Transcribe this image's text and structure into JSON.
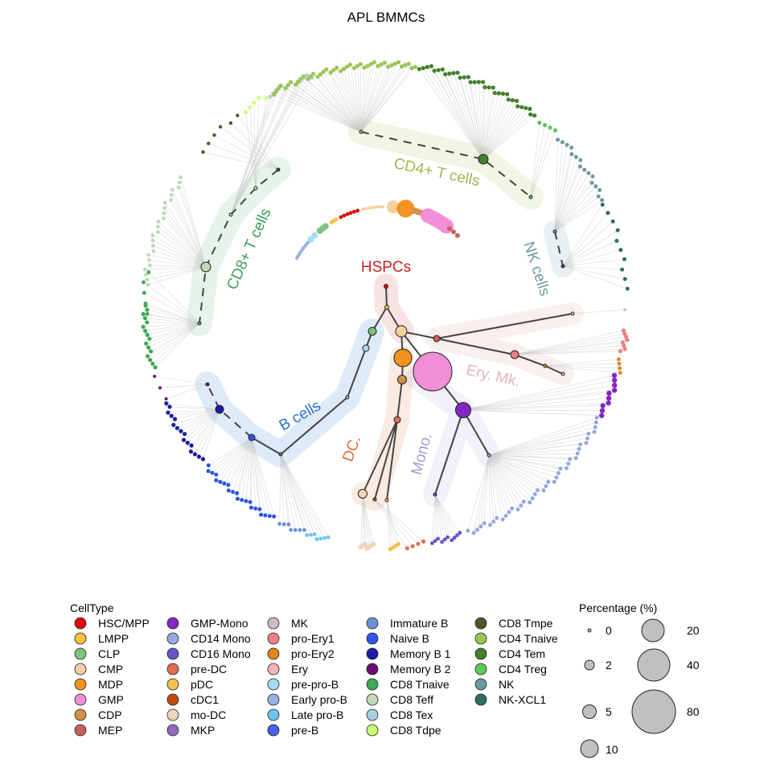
{
  "title": "APL BMMCs",
  "group_labels": [
    {
      "text": "HSPCs",
      "color": "#cc1f1f"
    },
    {
      "text": "CD4+ T cells",
      "color": "#9cba4d"
    },
    {
      "text": "CD8+ T cells",
      "color": "#3ea05a"
    },
    {
      "text": "NK cells",
      "color": "#6b9aa0"
    },
    {
      "text": "B cells",
      "color": "#2a6fd0"
    },
    {
      "text": "DC.",
      "color": "#d9703a"
    },
    {
      "text": "Mono.",
      "color": "#a99bd3"
    },
    {
      "text": "Ery. Mk.",
      "color": "#e6b6b6"
    }
  ],
  "legend": {
    "title": "CellType",
    "items": [
      {
        "label": "HSC/MPP",
        "color": "#e00b0b"
      },
      {
        "label": "LMPP",
        "color": "#f6c240"
      },
      {
        "label": "CLP",
        "color": "#7cc47f"
      },
      {
        "label": "CMP",
        "color": "#f6cfa0"
      },
      {
        "label": "MDP",
        "color": "#f39220"
      },
      {
        "label": "GMP",
        "color": "#f08fd5"
      },
      {
        "label": "CDP",
        "color": "#d4904a"
      },
      {
        "label": "MEP",
        "color": "#c95f5f"
      },
      {
        "label": "GMP-Mono",
        "color": "#8227c4"
      },
      {
        "label": "CD14 Mono",
        "color": "#97a7dc"
      },
      {
        "label": "CD16 Mono",
        "color": "#6a55c8"
      },
      {
        "label": "pre-DC",
        "color": "#e07052"
      },
      {
        "label": "pDC",
        "color": "#f0c050"
      },
      {
        "label": "cDC1",
        "color": "#c44a10"
      },
      {
        "label": "mo-DC",
        "color": "#eed6b8"
      },
      {
        "label": "MKP",
        "color": "#9467bd"
      },
      {
        "label": "MK",
        "color": "#ccbbcc"
      },
      {
        "label": "pro-Ery1",
        "color": "#ee7f86"
      },
      {
        "label": "pro-Ery2",
        "color": "#e0841a"
      },
      {
        "label": "Ery",
        "color": "#f3b6b8"
      },
      {
        "label": "pre-pro-B",
        "color": "#a8dcf2"
      },
      {
        "label": "Early pro-B",
        "color": "#98aee8"
      },
      {
        "label": "Late pro-B",
        "color": "#6cc6f0"
      },
      {
        "label": "pre-B",
        "color": "#4a5ee8"
      },
      {
        "label": "Immature B",
        "color": "#6a92d4"
      },
      {
        "label": "Naive B",
        "color": "#2a55e6"
      },
      {
        "label": "Memory B 1",
        "color": "#1c1ca6"
      },
      {
        "label": "Memory B 2",
        "color": "#6c0e70"
      },
      {
        "label": "CD8 Tnaive",
        "color": "#3aaa55"
      },
      {
        "label": "CD8 Teff",
        "color": "#c3d8b6"
      },
      {
        "label": "CD8 Tex",
        "color": "#a8cce0"
      },
      {
        "label": "CD8 Tdpe",
        "color": "#caff70"
      },
      {
        "label": "CD8 Tmpe",
        "color": "#4a5a28"
      },
      {
        "label": "CD4 Tnaive",
        "color": "#9cc553"
      },
      {
        "label": "CD4 Tem",
        "color": "#457f2a"
      },
      {
        "label": "CD4 Treg",
        "color": "#5cc85c"
      },
      {
        "label": "NK",
        "color": "#6a9aa0"
      },
      {
        "label": "NK-XCL1",
        "color": "#2e6e60"
      }
    ]
  },
  "size_legend": {
    "title": "Percentage (%)",
    "values": [
      "0",
      "2",
      "5",
      "10",
      "20",
      "40",
      "80"
    ],
    "fill": "#c0c0c0"
  }
}
